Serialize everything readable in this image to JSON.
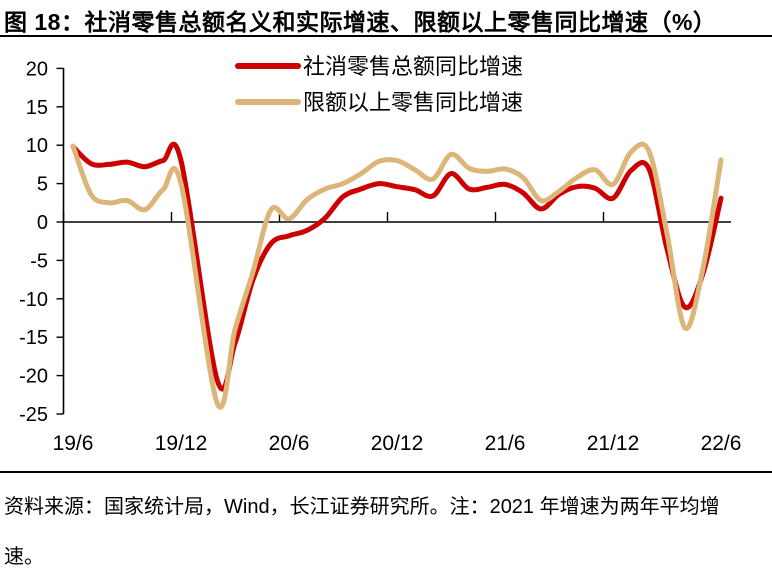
{
  "figure": {
    "title": "图 18：社消零售总额名义和实际增速、限额以上零售同比增速（%）",
    "footer": {
      "line1": "资料来源：国家统计局，Wind，长江证券研究所。注：2021 年增速为两年平均增",
      "line2": "速。"
    }
  },
  "colors": {
    "series1": "#CC0000",
    "series2": "#DBB678",
    "axis": "#000000"
  },
  "chart_data": {
    "type": "line",
    "title": "社消零售总额名义和实际增速、限额以上零售同比增速（%）",
    "x": [
      "19/6",
      "19/7",
      "19/8",
      "19/9",
      "19/10",
      "19/11",
      "19/12",
      "20/1",
      "20/2",
      "20/3",
      "20/4",
      "20/5",
      "20/6",
      "20/7",
      "20/8",
      "20/9",
      "20/10",
      "20/11",
      "20/12",
      "21/1",
      "21/2",
      "21/3",
      "21/4",
      "21/5",
      "21/6",
      "21/7",
      "21/8",
      "21/9",
      "21/10",
      "21/11",
      "21/12",
      "22/1",
      "22/2",
      "22/3",
      "22/4",
      "22/5",
      "22/6"
    ],
    "series": [
      {
        "name": "社消零售总额同比增速",
        "color_key": "series1",
        "values": [
          9.8,
          7.6,
          7.5,
          7.8,
          7.2,
          8.0,
          8.0,
          null,
          -20.5,
          -15.8,
          -7.5,
          -2.8,
          -1.8,
          -1.1,
          0.5,
          3.3,
          4.3,
          5.0,
          4.6,
          4.2,
          3.4,
          6.3,
          4.3,
          4.5,
          4.9,
          3.8,
          1.7,
          3.6,
          4.6,
          4.4,
          3.1,
          6.7,
          6.9,
          -3.5,
          -11.1,
          -6.7,
          3.1
        ]
      },
      {
        "name": "限额以上零售同比增速",
        "color_key": "series2",
        "values": [
          9.9,
          3.6,
          2.5,
          2.8,
          1.6,
          4.2,
          5.0,
          null,
          -23.5,
          -14.0,
          -6.5,
          1.6,
          0.4,
          2.9,
          4.3,
          5.0,
          6.3,
          7.9,
          8.0,
          6.8,
          5.6,
          8.8,
          7.0,
          6.6,
          6.9,
          5.8,
          2.8,
          4.0,
          5.8,
          6.8,
          4.9,
          9.1,
          9.2,
          -1.5,
          -13.8,
          -6.0,
          8.1
        ]
      }
    ],
    "y_ticks": [
      20,
      15,
      10,
      5,
      0,
      -5,
      -10,
      -15,
      -20,
      -25
    ],
    "x_tick_labels": [
      "19/6",
      "19/12",
      "20/6",
      "20/12",
      "21/6",
      "21/12",
      "22/6"
    ],
    "ylim": [
      -25,
      20
    ],
    "grid": false,
    "legend_position": "top-center"
  }
}
